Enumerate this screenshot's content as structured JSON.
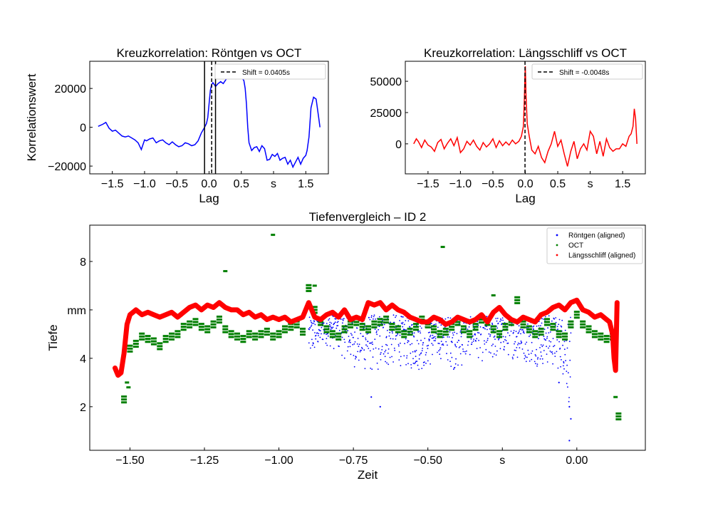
{
  "figure": {
    "background": "#ffffff"
  },
  "chart_data": [
    {
      "type": "line",
      "title": "Kreuzkorrelation: Röntgen vs OCT",
      "xlabel": "Lag",
      "ylabel": "Korrelationswert",
      "xlim": [
        -1.85,
        1.85
      ],
      "ylim": [
        -24000,
        34000
      ],
      "xticks": [
        {
          "value": -1.5,
          "label": "−1.5"
        },
        {
          "value": -1.0,
          "label": "−1.0"
        },
        {
          "value": -0.5,
          "label": "−0.5"
        },
        {
          "value": 0.0,
          "label": "0.0"
        },
        {
          "value": 0.5,
          "label": "0.5"
        },
        {
          "value": 1.0,
          "label": "s"
        },
        {
          "value": 1.5,
          "label": "1.5"
        }
      ],
      "yticks": [
        {
          "value": 20000,
          "label": "20000"
        },
        {
          "value": 0,
          "label": "0"
        },
        {
          "value": -20000,
          "label": "−20000"
        }
      ],
      "series": [
        {
          "color": "#0000ff",
          "x": [
            -1.72,
            -1.65,
            -1.6,
            -1.55,
            -1.5,
            -1.45,
            -1.4,
            -1.35,
            -1.3,
            -1.25,
            -1.2,
            -1.15,
            -1.1,
            -1.05,
            -1.0,
            -0.97,
            -0.92,
            -0.87,
            -0.82,
            -0.77,
            -0.72,
            -0.67,
            -0.62,
            -0.57,
            -0.52,
            -0.47,
            -0.42,
            -0.37,
            -0.32,
            -0.27,
            -0.22,
            -0.17,
            -0.12,
            -0.07,
            -0.04,
            -0.02,
            0.0,
            0.02,
            0.04,
            0.06,
            0.1,
            0.14,
            0.18,
            0.22,
            0.26,
            0.3,
            0.34,
            0.38,
            0.42,
            0.46,
            0.5,
            0.54,
            0.56,
            0.58,
            0.6,
            0.62,
            0.66,
            0.7,
            0.74,
            0.78,
            0.82,
            0.86,
            0.9,
            0.94,
            0.98,
            1.02,
            1.06,
            1.1,
            1.14,
            1.18,
            1.22,
            1.26,
            1.3,
            1.34,
            1.38,
            1.42,
            1.46,
            1.5,
            1.52,
            1.55,
            1.58,
            1.62,
            1.66,
            1.7,
            1.72
          ],
          "y": [
            500,
            1500,
            2500,
            -500,
            -2000,
            -1500,
            -3000,
            -4500,
            -5000,
            -4500,
            -5500,
            -6500,
            -8000,
            -11500,
            -6500,
            -7000,
            -6000,
            -5500,
            -8000,
            -7000,
            -6500,
            -8000,
            -9000,
            -7500,
            -9000,
            -10000,
            -9500,
            -8000,
            -8500,
            -9500,
            -9000,
            -7000,
            -3000,
            0,
            2000,
            5000,
            12000,
            19000,
            22000,
            23000,
            21000,
            22500,
            23500,
            22500,
            24500,
            26000,
            25500,
            27000,
            30500,
            29500,
            26000,
            24000,
            20000,
            12000,
            0,
            -8000,
            -12000,
            -10500,
            -10000,
            -12500,
            -9500,
            -11000,
            -17000,
            -16500,
            -14000,
            -15000,
            -13500,
            -17000,
            -16000,
            -15500,
            -19000,
            -17000,
            -20500,
            -18000,
            -15500,
            -19000,
            -16000,
            -14500,
            -12000,
            -5000,
            10000,
            15500,
            14500,
            5000,
            0
          ]
        }
      ],
      "vlines": [
        {
          "x": -0.07,
          "style": "solid",
          "color": "#000000"
        },
        {
          "x": 0.0405,
          "style": "dashed",
          "color": "#000000"
        },
        {
          "x": 0.1,
          "style": "solid",
          "color": "#000000"
        }
      ],
      "legend": {
        "position": "top-right",
        "entries": [
          {
            "label": "Shift = 0.0405s",
            "style": "dashed",
            "color": "#000000"
          }
        ]
      }
    },
    {
      "type": "line",
      "title": "Kreuzkorrelation: Längsschliff vs OCT",
      "xlabel": "Lag",
      "ylabel": "",
      "xlim": [
        -1.85,
        1.85
      ],
      "ylim": [
        -24000,
        66000
      ],
      "xticks": [
        {
          "value": -1.5,
          "label": "−1.5"
        },
        {
          "value": -1.0,
          "label": "−1.0"
        },
        {
          "value": -0.5,
          "label": "−0.5"
        },
        {
          "value": 0.0,
          "label": "0.0"
        },
        {
          "value": 0.5,
          "label": "0.5"
        },
        {
          "value": 1.0,
          "label": "s"
        },
        {
          "value": 1.5,
          "label": "1.5"
        }
      ],
      "yticks": [
        {
          "value": 50000,
          "label": "50000"
        },
        {
          "value": 25000,
          "label": "25000"
        },
        {
          "value": 0,
          "label": "0"
        }
      ],
      "series": [
        {
          "color": "#ff0000",
          "x": [
            -1.72,
            -1.68,
            -1.65,
            -1.6,
            -1.55,
            -1.5,
            -1.45,
            -1.4,
            -1.35,
            -1.3,
            -1.25,
            -1.2,
            -1.15,
            -1.1,
            -1.05,
            -1.0,
            -0.95,
            -0.9,
            -0.85,
            -0.8,
            -0.75,
            -0.7,
            -0.65,
            -0.6,
            -0.55,
            -0.5,
            -0.45,
            -0.4,
            -0.35,
            -0.3,
            -0.25,
            -0.2,
            -0.15,
            -0.1,
            -0.06,
            -0.03,
            -0.015,
            -0.005,
            0.0,
            0.01,
            0.03,
            0.06,
            0.1,
            0.15,
            0.2,
            0.25,
            0.3,
            0.35,
            0.4,
            0.45,
            0.5,
            0.55,
            0.6,
            0.65,
            0.7,
            0.75,
            0.8,
            0.85,
            0.9,
            0.95,
            1.0,
            1.05,
            1.1,
            1.15,
            1.2,
            1.25,
            1.3,
            1.35,
            1.4,
            1.45,
            1.5,
            1.55,
            1.6,
            1.63,
            1.66,
            1.68,
            1.7,
            1.72
          ],
          "y": [
            0,
            4000,
            2000,
            -3000,
            3000,
            -1000,
            -2500,
            -6000,
            1000,
            3500,
            -4000,
            500,
            4000,
            -1500,
            5000,
            -7000,
            -4000,
            2000,
            -1000,
            3000,
            -2000,
            -5000,
            1000,
            -2500,
            0,
            4000,
            -3000,
            2500,
            -1500,
            1500,
            -1000,
            3000,
            0,
            2000,
            6000,
            14000,
            35000,
            55000,
            62000,
            40000,
            16000,
            6000,
            -5000,
            -8000,
            -2000,
            -11000,
            -15000,
            -6000,
            0,
            10000,
            -2000,
            3000,
            -8000,
            -18000,
            -6000,
            2000,
            -12000,
            -4000,
            0,
            -5000,
            10000,
            6000,
            -8000,
            2000,
            -10000,
            4000,
            -3000,
            -6000,
            -4000,
            -4000,
            0,
            -2000,
            6000,
            8000,
            14000,
            28000,
            20000,
            0
          ]
        }
      ],
      "vlines": [
        {
          "x": -0.0048,
          "style": "dashed",
          "color": "#000000"
        }
      ],
      "legend": {
        "position": "top-right",
        "entries": [
          {
            "label": "Shift = -0.0048s",
            "style": "dashed",
            "color": "#000000"
          }
        ]
      }
    },
    {
      "type": "scatter",
      "title": "Tiefenvergleich – ID 2",
      "xlabel": "Zeit",
      "ylabel": "Tiefe",
      "xlim": [
        -1.635,
        0.23
      ],
      "ylim": [
        0.2,
        9.5
      ],
      "xticks": [
        {
          "value": -1.5,
          "label": "−1.50"
        },
        {
          "value": -1.25,
          "label": "−1.25"
        },
        {
          "value": -1.0,
          "label": "−1.00"
        },
        {
          "value": -0.75,
          "label": "−0.75"
        },
        {
          "value": -0.5,
          "label": "−0.50"
        },
        {
          "value": -0.25,
          "label": "s"
        },
        {
          "value": 0.0,
          "label": "0.00"
        }
      ],
      "yticks": [
        {
          "value": 2,
          "label": "2"
        },
        {
          "value": 4,
          "label": "4"
        },
        {
          "value": 6,
          "label": "mm"
        },
        {
          "value": 8,
          "label": "8"
        }
      ],
      "legend": {
        "position": "top-right"
      },
      "series": [
        {
          "name": "Röntgen (aligned)",
          "color": "#0000ff",
          "x_range": [
            -0.9,
            -0.02
          ],
          "envelope_x": [
            -0.9,
            -0.85,
            -0.8,
            -0.75,
            -0.7,
            -0.65,
            -0.6,
            -0.55,
            -0.5,
            -0.45,
            -0.4,
            -0.35,
            -0.3,
            -0.25,
            -0.2,
            -0.15,
            -0.1,
            -0.05,
            -0.02
          ],
          "envelope_low": [
            3.8,
            4.6,
            4.2,
            3.6,
            3.3,
            3.4,
            3.7,
            3.4,
            3.5,
            4.0,
            3.3,
            4.2,
            3.6,
            4.1,
            3.9,
            3.7,
            3.6,
            3.4,
            1.6
          ],
          "envelope_high": [
            5.7,
            5.7,
            5.9,
            5.7,
            5.8,
            5.8,
            5.8,
            5.6,
            5.6,
            5.7,
            5.8,
            5.7,
            5.8,
            5.7,
            5.8,
            5.7,
            5.8,
            5.7,
            5.7
          ],
          "outliers": [
            [
              -0.025,
              2.0
            ],
            [
              -0.02,
              1.5
            ],
            [
              -0.025,
              0.6
            ],
            [
              -0.66,
              2.0
            ],
            [
              -0.69,
              2.4
            ],
            [
              -0.06,
              3.0
            ]
          ]
        },
        {
          "name": "OCT",
          "color": "#008000",
          "x": [
            -1.52,
            -1.5,
            -1.48,
            -1.46,
            -1.44,
            -1.42,
            -1.4,
            -1.38,
            -1.36,
            -1.34,
            -1.32,
            -1.3,
            -1.28,
            -1.26,
            -1.24,
            -1.22,
            -1.2,
            -1.18,
            -1.16,
            -1.14,
            -1.12,
            -1.1,
            -1.08,
            -1.06,
            -1.04,
            -1.02,
            -1.0,
            -0.98,
            -0.96,
            -0.94,
            -0.92,
            -0.9,
            -0.88,
            -0.86,
            -0.84,
            -0.82,
            -0.8,
            -0.78,
            -0.76,
            -0.74,
            -0.72,
            -0.7,
            -0.68,
            -0.66,
            -0.64,
            -0.62,
            -0.6,
            -0.58,
            -0.56,
            -0.54,
            -0.52,
            -0.5,
            -0.48,
            -0.46,
            -0.44,
            -0.42,
            -0.4,
            -0.38,
            -0.36,
            -0.34,
            -0.32,
            -0.3,
            -0.28,
            -0.26,
            -0.24,
            -0.22,
            -0.2,
            -0.18,
            -0.16,
            -0.14,
            -0.12,
            -0.1,
            -0.08,
            -0.06,
            -0.04,
            -0.02,
            0.0,
            0.02,
            0.04,
            0.06,
            0.08,
            0.1,
            0.12,
            0.14
          ],
          "y": [
            2.3,
            4.4,
            4.6,
            4.9,
            4.8,
            4.7,
            4.5,
            4.8,
            4.9,
            5.0,
            5.3,
            5.4,
            5.5,
            5.3,
            5.2,
            5.4,
            5.6,
            5.2,
            5.0,
            4.9,
            4.8,
            5.0,
            4.9,
            5.0,
            5.1,
            4.9,
            5.0,
            5.2,
            5.3,
            5.4,
            5.1,
            6.9,
            6.0,
            5.5,
            5.2,
            5.0,
            4.9,
            5.2,
            5.4,
            5.5,
            5.3,
            5.2,
            5.4,
            5.5,
            5.6,
            5.3,
            5.2,
            5.0,
            5.1,
            5.3,
            5.6,
            5.4,
            5.2,
            5.0,
            5.1,
            5.3,
            5.5,
            5.2,
            5.0,
            5.3,
            5.6,
            5.5,
            5.2,
            5.0,
            5.3,
            5.5,
            6.4,
            5.4,
            5.2,
            5.0,
            5.1,
            5.5,
            5.3,
            5.0,
            4.9,
            5.4,
            5.8,
            5.4,
            5.2,
            5.0,
            4.9,
            4.8,
            4.9,
            1.6
          ],
          "outliers": [
            [
              -1.18,
              7.6
            ],
            [
              -1.02,
              9.1
            ],
            [
              -0.45,
              8.6
            ],
            [
              -0.28,
              6.6
            ],
            [
              -0.88,
              7.0
            ],
            [
              0.13,
              2.4
            ],
            [
              -1.51,
              3.0
            ],
            [
              -1.505,
              2.8
            ]
          ]
        },
        {
          "name": "Längsschliff (aligned)",
          "color": "#ff0000",
          "x": [
            -1.55,
            -1.54,
            -1.53,
            -1.52,
            -1.51,
            -1.5,
            -1.48,
            -1.46,
            -1.44,
            -1.42,
            -1.4,
            -1.38,
            -1.36,
            -1.34,
            -1.32,
            -1.3,
            -1.28,
            -1.26,
            -1.24,
            -1.22,
            -1.2,
            -1.18,
            -1.16,
            -1.14,
            -1.12,
            -1.1,
            -1.08,
            -1.06,
            -1.04,
            -1.02,
            -1.0,
            -0.98,
            -0.96,
            -0.94,
            -0.92,
            -0.9,
            -0.88,
            -0.86,
            -0.84,
            -0.82,
            -0.8,
            -0.78,
            -0.76,
            -0.74,
            -0.72,
            -0.7,
            -0.68,
            -0.66,
            -0.64,
            -0.62,
            -0.6,
            -0.58,
            -0.56,
            -0.54,
            -0.52,
            -0.5,
            -0.48,
            -0.46,
            -0.44,
            -0.42,
            -0.4,
            -0.38,
            -0.36,
            -0.34,
            -0.32,
            -0.3,
            -0.28,
            -0.26,
            -0.24,
            -0.22,
            -0.2,
            -0.18,
            -0.16,
            -0.14,
            -0.12,
            -0.1,
            -0.08,
            -0.06,
            -0.04,
            -0.02,
            0.0,
            0.02,
            0.04,
            0.06,
            0.08,
            0.1,
            0.11,
            0.12,
            0.125,
            0.13,
            0.135
          ],
          "y": [
            3.6,
            3.3,
            3.4,
            4.2,
            5.4,
            5.8,
            6.0,
            5.8,
            5.9,
            5.8,
            5.7,
            5.8,
            5.9,
            5.7,
            5.9,
            6.1,
            6.2,
            6.0,
            6.2,
            6.1,
            6.3,
            6.1,
            6.0,
            6.0,
            5.8,
            5.9,
            5.7,
            5.8,
            5.6,
            5.7,
            5.6,
            5.7,
            5.5,
            5.6,
            5.7,
            6.3,
            5.7,
            5.6,
            5.8,
            5.9,
            5.7,
            6.0,
            5.6,
            5.7,
            5.6,
            6.3,
            6.2,
            6.3,
            6.0,
            6.2,
            6.0,
            5.9,
            5.7,
            5.6,
            5.5,
            5.5,
            5.7,
            5.6,
            5.4,
            5.5,
            5.7,
            5.6,
            5.5,
            5.6,
            5.8,
            5.5,
            5.9,
            6.1,
            5.8,
            5.6,
            5.5,
            5.7,
            5.6,
            5.5,
            5.8,
            5.9,
            6.1,
            6.2,
            6.0,
            6.3,
            6.4,
            6.0,
            5.9,
            5.7,
            5.8,
            5.6,
            5.5,
            5.0,
            4.0,
            3.5,
            6.3
          ]
        }
      ]
    }
  ]
}
